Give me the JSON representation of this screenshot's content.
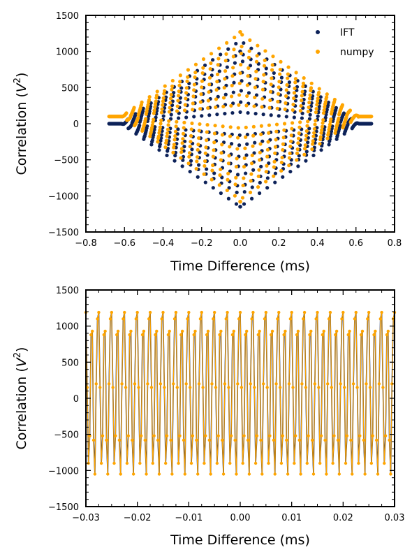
{
  "chart_data": [
    {
      "type": "scatter",
      "title": "",
      "xlabel": "Time Difference (ms)",
      "ylabel_main": "Correlation (",
      "ylabel_var": "V",
      "ylabel_exp": "2",
      "ylabel_end": ")",
      "xlim": [
        -0.8,
        0.8
      ],
      "ylim": [
        -1500,
        1500
      ],
      "xticks": [
        "−0.8",
        "−0.6",
        "−0.4",
        "−0.2",
        "0.0",
        "0.2",
        "0.4",
        "0.6",
        "0.8"
      ],
      "yticks": [
        "−1500",
        "−1000",
        "−500",
        "0",
        "500",
        "1000",
        "1500"
      ],
      "legend_position": "top-right",
      "grid": false,
      "signal": {
        "x_extent": [
          -0.68,
          0.68
        ],
        "envelope_half_width": 0.615,
        "sample_spacing": 0.0025,
        "period": 0.0025,
        "amplitudes": [
          1150,
          980,
          880,
          720,
          600,
          460,
          300,
          160
        ]
      },
      "series": [
        {
          "name": "IFT",
          "color": "#0d2259",
          "offset": 0,
          "peak_max": 1000,
          "peak_min": -1150
        },
        {
          "name": "numpy",
          "color": "#ffa500",
          "offset": 100,
          "peak_max": 1270,
          "peak_min": -1080
        }
      ]
    },
    {
      "type": "line",
      "title": "",
      "xlabel": "Time Difference (ms)",
      "ylabel_main": "Correlation (",
      "ylabel_var": "V",
      "ylabel_exp": "2",
      "ylabel_end": ")",
      "xlim": [
        -0.03,
        0.03
      ],
      "ylim": [
        -1500,
        1500
      ],
      "xticks": [
        "−0.03",
        "−0.02",
        "−0.01",
        "0.00",
        "0.01",
        "0.02",
        "0.03"
      ],
      "yticks": [
        "−1500",
        "−1000",
        "−500",
        "0",
        "500",
        "1000",
        "1500"
      ],
      "grid": false,
      "sample_spacing": 0.00025,
      "cycle_samples": 10,
      "cycle_values": [
        1190,
        150,
        -900,
        -520,
        880,
        930,
        -580,
        -1050,
        200,
        1100
      ],
      "series": [
        {
          "name": "IFT",
          "color": "#0d2259"
        },
        {
          "name": "numpy",
          "color": "#ffa500"
        }
      ]
    }
  ]
}
